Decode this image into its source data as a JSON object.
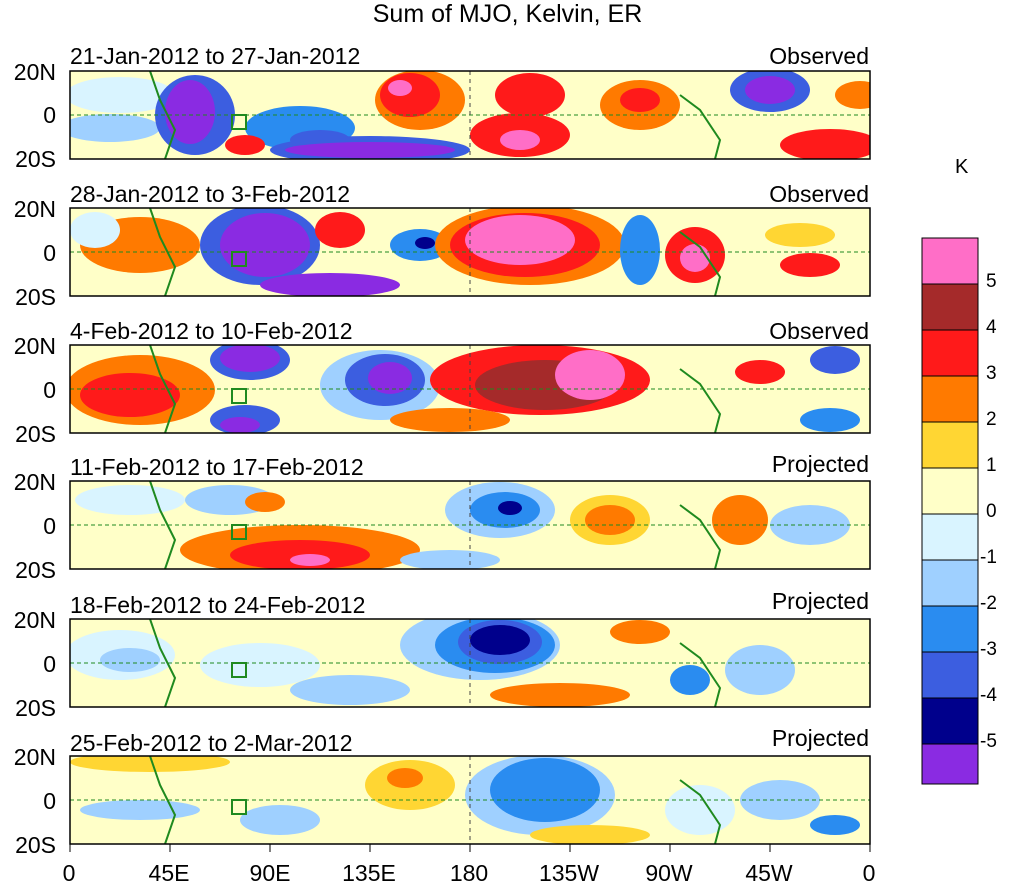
{
  "title": "Sum of MJO, Kelvin, ER",
  "panels": [
    {
      "date_range": "21-Jan-2012 to 27-Jan-2012",
      "kind": "Observed"
    },
    {
      "date_range": "28-Jan-2012 to 3-Feb-2012",
      "kind": "Observed"
    },
    {
      "date_range": "4-Feb-2012 to 10-Feb-2012",
      "kind": "Observed"
    },
    {
      "date_range": "11-Feb-2012 to 17-Feb-2012",
      "kind": "Projected"
    },
    {
      "date_range": "18-Feb-2012 to 24-Feb-2012",
      "kind": "Projected"
    },
    {
      "date_range": "25-Feb-2012 to 2-Mar-2012",
      "kind": "Projected"
    }
  ],
  "lat_labels": [
    "20N",
    "0",
    "20S"
  ],
  "lon_labels": [
    "0",
    "45E",
    "90E",
    "135E",
    "180",
    "135W",
    "90W",
    "45W",
    "0"
  ],
  "colorbar": {
    "unit": "K",
    "labels": [
      "5",
      "4",
      "3",
      "2",
      "1",
      "0",
      "-1",
      "-2",
      "-3",
      "-4",
      "-5"
    ],
    "colors": [
      "#ff6ec7",
      "#a52a2a",
      "#ff1a1a",
      "#ff7a00",
      "#ffd633",
      "#ffffc8",
      "#d9f4ff",
      "#9fd0ff",
      "#2a8cf0",
      "#3c5ee0",
      "#00008c",
      "#8a2be2"
    ]
  }
}
